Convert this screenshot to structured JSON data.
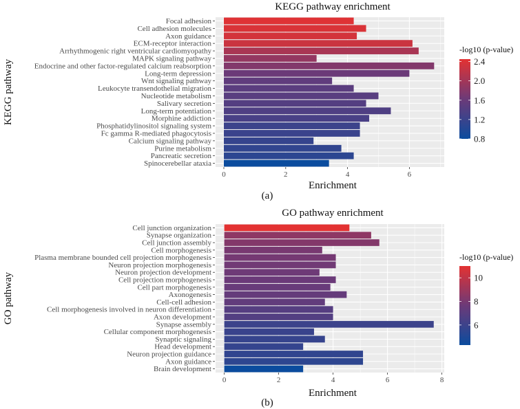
{
  "chart_data": [
    {
      "type": "bar",
      "orientation": "horizontal",
      "title": "KEGG pathway enrichment",
      "xlabel": "Enrichment",
      "ylabel": "KEGG pathway",
      "panel_label": "(a)",
      "xlim": [
        0,
        7.1
      ],
      "xticks": [
        0,
        2,
        4,
        6
      ],
      "grid": true,
      "legend": {
        "title": "-log10 (p-value)",
        "placement": "right",
        "range": [
          0.8,
          2.45
        ],
        "ticks": [
          2.4,
          2.0,
          1.6,
          1.2,
          0.8
        ]
      },
      "categories": [
        "Focal adhesion",
        "Cell adhesion molecules",
        "Axon guidance",
        "ECM-receptor interaction",
        "Arrhythmogenic right ventricular cardiomyopathy",
        "MAPK signaling pathway",
        "Endocrine and other factor-regulated calcium reabsorption",
        "Long-term depression",
        "Wnt signaling pathway",
        "Leukocyte transendothelial migration",
        "Nucleotide metabolism",
        "Salivary secretion",
        "Long-term potentiation",
        "Morphine addiction",
        "Phosphatidylinositol signaling system",
        "Fc gamma R-mediated phagocytosis",
        "Calcium signaling pathway",
        "Purine metabolism",
        "Pancreatic secretion",
        "Spinocerebellar ataxia"
      ],
      "values": [
        4.2,
        4.6,
        4.3,
        6.1,
        6.3,
        3.0,
        6.8,
        6.0,
        3.5,
        4.2,
        5.0,
        4.6,
        5.4,
        4.7,
        4.4,
        4.4,
        2.9,
        3.8,
        4.2,
        3.4
      ],
      "color_values": [
        2.42,
        2.38,
        2.34,
        2.28,
        2.05,
        1.9,
        1.78,
        1.62,
        1.52,
        1.48,
        1.46,
        1.42,
        1.38,
        1.33,
        1.22,
        1.2,
        1.16,
        1.12,
        1.08,
        0.8
      ]
    },
    {
      "type": "bar",
      "orientation": "horizontal",
      "title": "GO pathway enrichment",
      "xlabel": "Enrichment",
      "ylabel": "GO pathway",
      "panel_label": "(b)",
      "xlim": [
        0,
        8.1
      ],
      "xticks": [
        0,
        2,
        4,
        6,
        8
      ],
      "grid": true,
      "legend": {
        "title": "-log10 (p-value)",
        "placement": "right",
        "range": [
          4.3,
          11.0
        ],
        "ticks": [
          10,
          8,
          6
        ]
      },
      "categories": [
        "Cell junction organization",
        "Synapse organization",
        "Cell junction assembly",
        "Cell morphogenesis",
        "Plasma membrane bounded cell projection morphogenesis",
        "Neuron projection morphogenesis",
        "Neuron projection development",
        "Cell projection morphogenesis",
        "Cell part morphogenesis",
        "Axonogenesis",
        "Cell-cell adhesion",
        "Cell morphogenesis involved in neuron differentiation",
        "Axon development",
        "Synapse assembly",
        "Cellular component morphogenesis",
        "Synaptic signaling",
        "Head development",
        "Neuron projection guidance",
        "Axon guidance",
        "Brain development"
      ],
      "values": [
        4.6,
        5.4,
        5.7,
        3.6,
        4.1,
        4.1,
        3.5,
        4.1,
        3.9,
        4.5,
        3.7,
        4.0,
        4.0,
        7.7,
        3.3,
        3.7,
        2.9,
        5.1,
        5.1,
        2.9
      ],
      "color_values": [
        11.0,
        8.6,
        8.3,
        8.0,
        7.9,
        7.8,
        7.7,
        7.6,
        7.5,
        7.4,
        7.3,
        6.9,
        6.8,
        6.0,
        5.9,
        5.8,
        5.7,
        5.6,
        5.5,
        4.3
      ]
    }
  ],
  "colors": {
    "low": "#0b4c9e",
    "mid": "#6c3a78",
    "high": "#e33232",
    "panel_bg": "#ebebeb",
    "grid": "#ffffff"
  }
}
